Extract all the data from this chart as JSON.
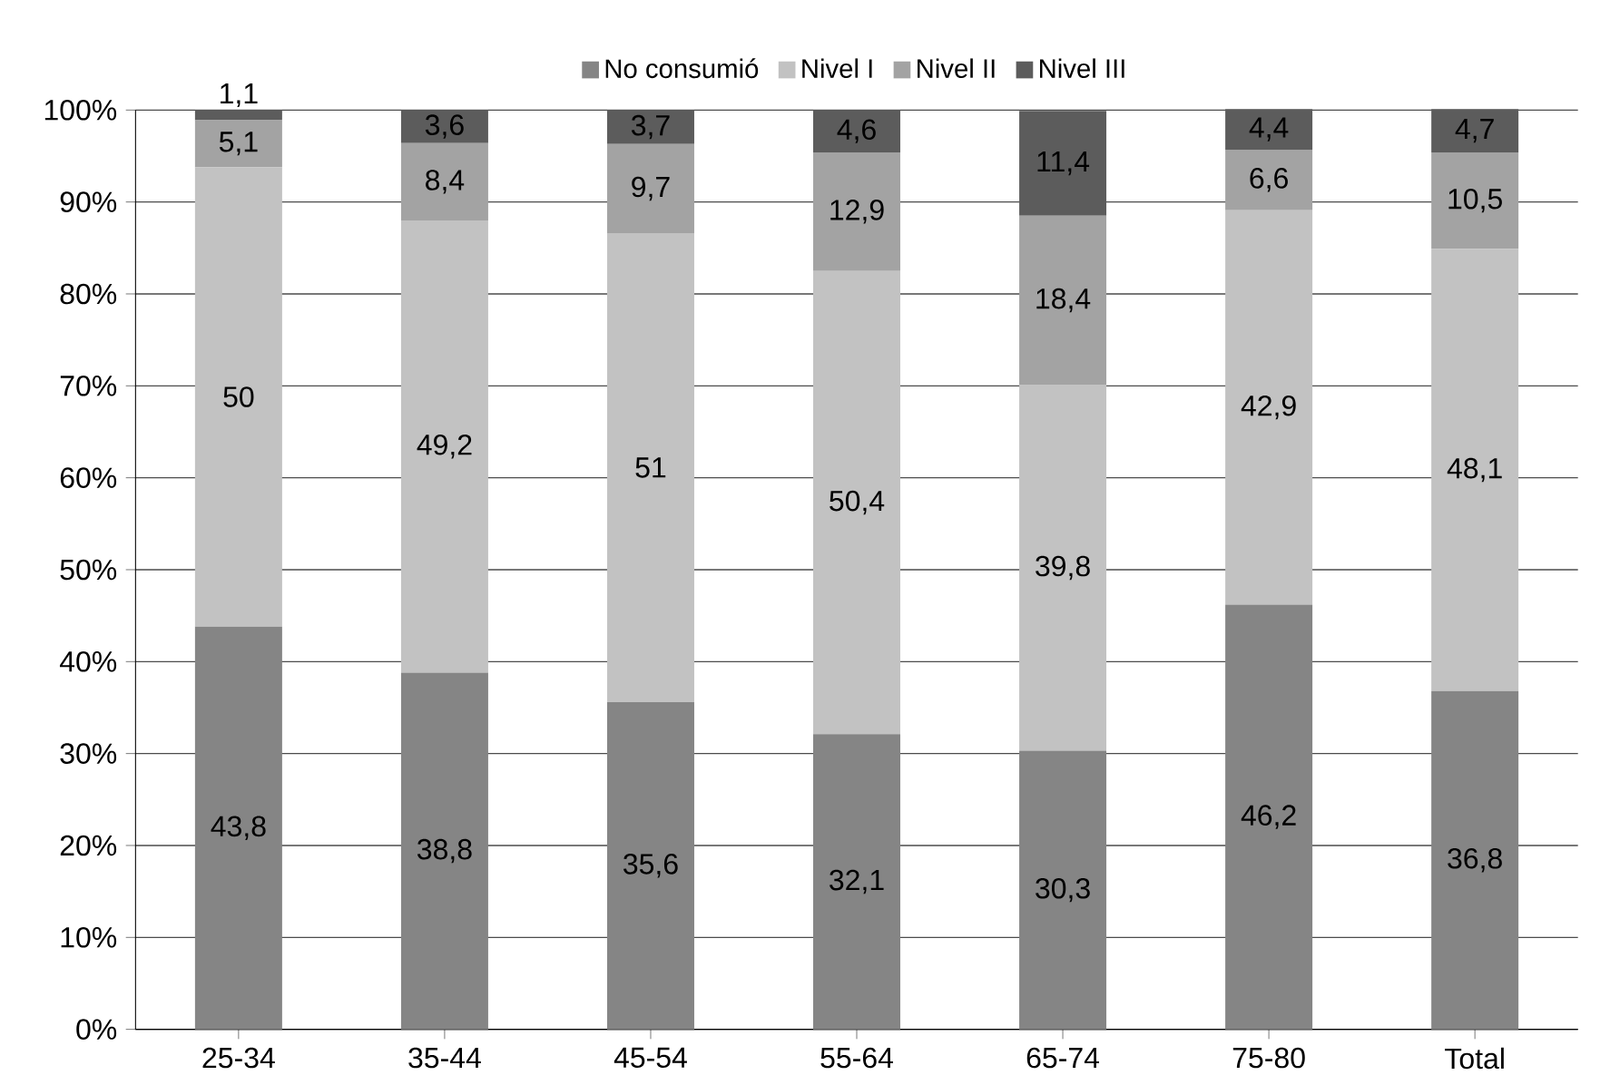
{
  "chart_data": {
    "type": "bar",
    "stacked": true,
    "categories": [
      "25-34",
      "35-44",
      "45-54",
      "55-64",
      "65-74",
      "75-80",
      "Total"
    ],
    "series": [
      {
        "name": "No consumió",
        "color": "#858585",
        "values": [
          43.8,
          38.8,
          35.6,
          32.1,
          30.3,
          46.2,
          36.8
        ],
        "value_labels": [
          "43,8",
          "38,8",
          "35,6",
          "32,1",
          "30,3",
          "46,2",
          "36,8"
        ]
      },
      {
        "name": "Nivel I",
        "color": "#c2c2c2",
        "values": [
          50,
          49.2,
          51,
          50.4,
          39.8,
          42.9,
          48.1
        ],
        "value_labels": [
          "50",
          "49,2",
          "51",
          "50,4",
          "39,8",
          "42,9",
          "48,1"
        ]
      },
      {
        "name": "Nivel II",
        "color": "#a3a3a3",
        "values": [
          5.1,
          8.4,
          9.7,
          12.9,
          18.4,
          6.6,
          10.5
        ],
        "value_labels": [
          "5,1",
          "8,4",
          "9,7",
          "12,9",
          "18,4",
          "6,6",
          "10,5"
        ]
      },
      {
        "name": "Nivel III",
        "color": "#5c5c5c",
        "values": [
          1.1,
          3.6,
          3.7,
          4.6,
          11.4,
          4.4,
          4.7
        ],
        "value_labels": [
          "1,1",
          "3,6",
          "3,7",
          "4,6",
          "11,4",
          "4,4",
          "4,7"
        ]
      }
    ],
    "ylim": [
      0,
      100
    ],
    "yticks": [
      {
        "value": 0,
        "label": "0%"
      },
      {
        "value": 10,
        "label": "10%"
      },
      {
        "value": 20,
        "label": "20%"
      },
      {
        "value": 30,
        "label": "30%"
      },
      {
        "value": 40,
        "label": "40%"
      },
      {
        "value": 50,
        "label": "50%"
      },
      {
        "value": 60,
        "label": "60%"
      },
      {
        "value": 70,
        "label": "70%"
      },
      {
        "value": 80,
        "label": "80%"
      },
      {
        "value": 90,
        "label": "90%"
      },
      {
        "value": 100,
        "label": "100%"
      }
    ],
    "grid": "y",
    "legend": "top"
  }
}
